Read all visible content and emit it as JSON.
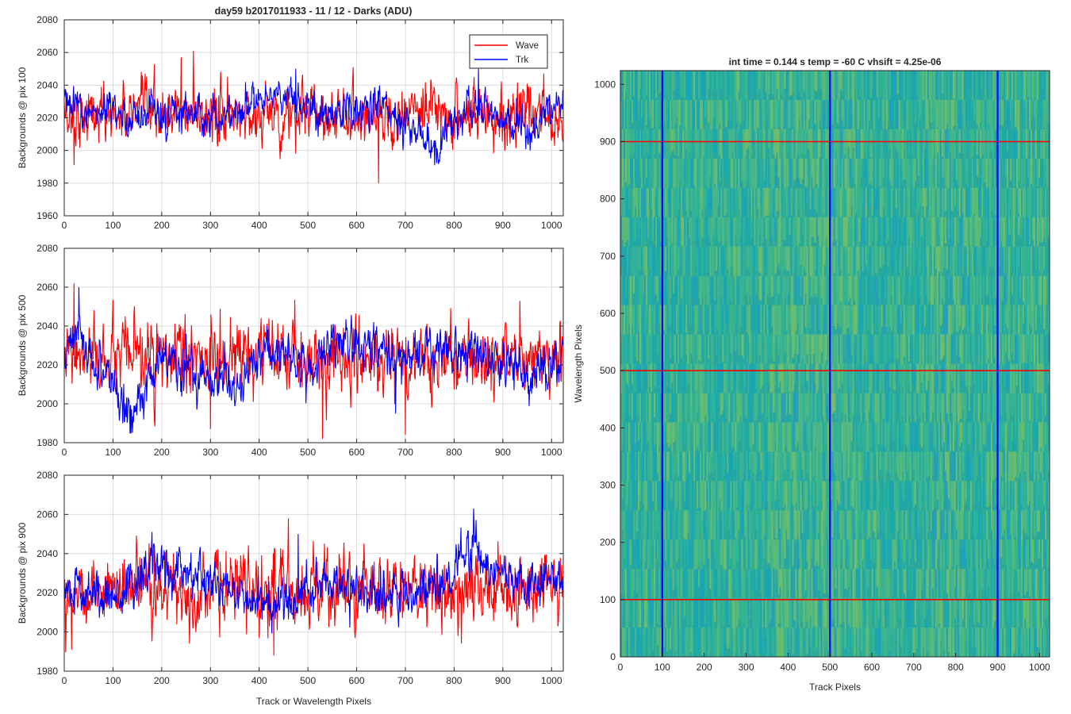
{
  "figure": {
    "suptitle": "day59 b2017011933 - 11 / 12 - Darks (ADU)"
  },
  "chart_data": [
    {
      "type": "line",
      "ylabel": "Backgrounds @ pix 100",
      "xlabel": "",
      "xlim": [
        0,
        1024
      ],
      "ylim": [
        1960,
        2080
      ],
      "xticks": [
        "0",
        "100",
        "200",
        "300",
        "400",
        "500",
        "600",
        "700",
        "800",
        "900",
        "1000"
      ],
      "yticks": [
        "1960",
        "1980",
        "2000",
        "2020",
        "2040",
        "2060",
        "2080"
      ],
      "grid": true,
      "legend": "top-right",
      "series": [
        {
          "name": "Wave",
          "color": "#ff0000",
          "mean": 2022,
          "noise": 9,
          "anchors": [
            [
              0,
              2022
            ],
            [
              1024,
              2022
            ]
          ],
          "spikes": [
            [
              265,
              2061
            ],
            [
              240,
              2057
            ],
            [
              645,
              1980
            ],
            [
              20,
              1991
            ],
            [
              475,
              1998
            ]
          ]
        },
        {
          "name": "Trk",
          "color": "#0000ff",
          "mean": 2024,
          "noise": 6,
          "anchors": [
            [
              0,
              2030
            ],
            [
              40,
              2024
            ],
            [
              120,
              2022
            ],
            [
              200,
              2022
            ],
            [
              290,
              2021
            ],
            [
              350,
              2024
            ],
            [
              440,
              2035
            ],
            [
              500,
              2025
            ],
            [
              560,
              2022
            ],
            [
              640,
              2030
            ],
            [
              700,
              2018
            ],
            [
              760,
              2000
            ],
            [
              790,
              2015
            ],
            [
              850,
              2028
            ],
            [
              920,
              2018
            ],
            [
              960,
              2010
            ],
            [
              1000,
              2030
            ],
            [
              1024,
              2024
            ]
          ],
          "spikes": [
            [
              475,
              2050
            ],
            [
              760,
              1991
            ],
            [
              850,
              2050
            ]
          ]
        }
      ]
    },
    {
      "type": "line",
      "ylabel": "Backgrounds @ pix 500",
      "xlabel": "",
      "xlim": [
        0,
        1024
      ],
      "ylim": [
        1980,
        2080
      ],
      "xticks": [
        "0",
        "100",
        "200",
        "300",
        "400",
        "500",
        "600",
        "700",
        "800",
        "900",
        "1000"
      ],
      "yticks": [
        "1980",
        "2000",
        "2020",
        "2040",
        "2060",
        "2080"
      ],
      "grid": true,
      "series": [
        {
          "name": "Wave",
          "color": "#ff0000",
          "mean": 2023,
          "noise": 9,
          "anchors": [
            [
              0,
              2023
            ],
            [
              1024,
              2023
            ]
          ],
          "spikes": [
            [
              20,
              2062
            ],
            [
              530,
              1982
            ],
            [
              700,
              1984
            ],
            [
              300,
              1987
            ]
          ]
        },
        {
          "name": "Trk",
          "color": "#0000ff",
          "mean": 2020,
          "noise": 6,
          "anchors": [
            [
              0,
              2025
            ],
            [
              30,
              2040
            ],
            [
              60,
              2020
            ],
            [
              110,
              2005
            ],
            [
              140,
              1998
            ],
            [
              200,
              2023
            ],
            [
              290,
              2013
            ],
            [
              340,
              2010
            ],
            [
              440,
              2030
            ],
            [
              500,
              2016
            ],
            [
              550,
              2030
            ],
            [
              650,
              2030
            ],
            [
              700,
              2020
            ],
            [
              760,
              2027
            ],
            [
              860,
              2025
            ],
            [
              950,
              2012
            ],
            [
              1024,
              2025
            ]
          ],
          "spikes": [
            [
              30,
              2060
            ],
            [
              120,
              1990
            ],
            [
              680,
              1995
            ]
          ]
        }
      ]
    },
    {
      "type": "line",
      "ylabel": "Backgrounds @ pix 900",
      "xlabel": "Track or Wavelength Pixels",
      "xlim": [
        0,
        1024
      ],
      "ylim": [
        1980,
        2080
      ],
      "xticks": [
        "0",
        "100",
        "200",
        "300",
        "400",
        "500",
        "600",
        "700",
        "800",
        "900",
        "1000"
      ],
      "yticks": [
        "1980",
        "2000",
        "2020",
        "2040",
        "2060",
        "2080"
      ],
      "grid": true,
      "series": [
        {
          "name": "Wave",
          "color": "#ff0000",
          "mean": 2022,
          "noise": 9,
          "anchors": [
            [
              0,
              2022
            ],
            [
              1024,
              2022
            ]
          ],
          "spikes": [
            [
              460,
              2058
            ],
            [
              430,
              1988
            ],
            [
              15,
              1991
            ]
          ]
        },
        {
          "name": "Trk",
          "color": "#0000ff",
          "mean": 2022,
          "noise": 6,
          "anchors": [
            [
              0,
              2022
            ],
            [
              100,
              2018
            ],
            [
              180,
              2035
            ],
            [
              250,
              2028
            ],
            [
              350,
              2022
            ],
            [
              420,
              2010
            ],
            [
              480,
              2020
            ],
            [
              600,
              2022
            ],
            [
              700,
              2018
            ],
            [
              780,
              2025
            ],
            [
              840,
              2045
            ],
            [
              880,
              2030
            ],
            [
              950,
              2025
            ],
            [
              1024,
              2030
            ]
          ],
          "spikes": [
            [
              840,
              2063
            ],
            [
              180,
              2051
            ],
            [
              480,
              2050
            ]
          ]
        }
      ]
    },
    {
      "type": "heatmap",
      "title": "int time = 0.144 s   temp = -60 C   vhsift = 4.25e-06",
      "xlabel": "Track Pixels",
      "ylabel": "Wavelength Pixels",
      "xlim": [
        0,
        1024
      ],
      "ylim": [
        0,
        1024
      ],
      "xticks": [
        "0",
        "100",
        "200",
        "300",
        "400",
        "500",
        "600",
        "700",
        "800",
        "900",
        "1000"
      ],
      "yticks": [
        "0",
        "100",
        "200",
        "300",
        "400",
        "500",
        "600",
        "700",
        "800",
        "900",
        "1000"
      ],
      "colormap": "parula",
      "vertical_lines": {
        "values": [
          100,
          500,
          900
        ],
        "color": "#0000ff"
      },
      "horizontal_lines": {
        "values": [
          100,
          500,
          900
        ],
        "color": "#ff0000"
      }
    }
  ]
}
